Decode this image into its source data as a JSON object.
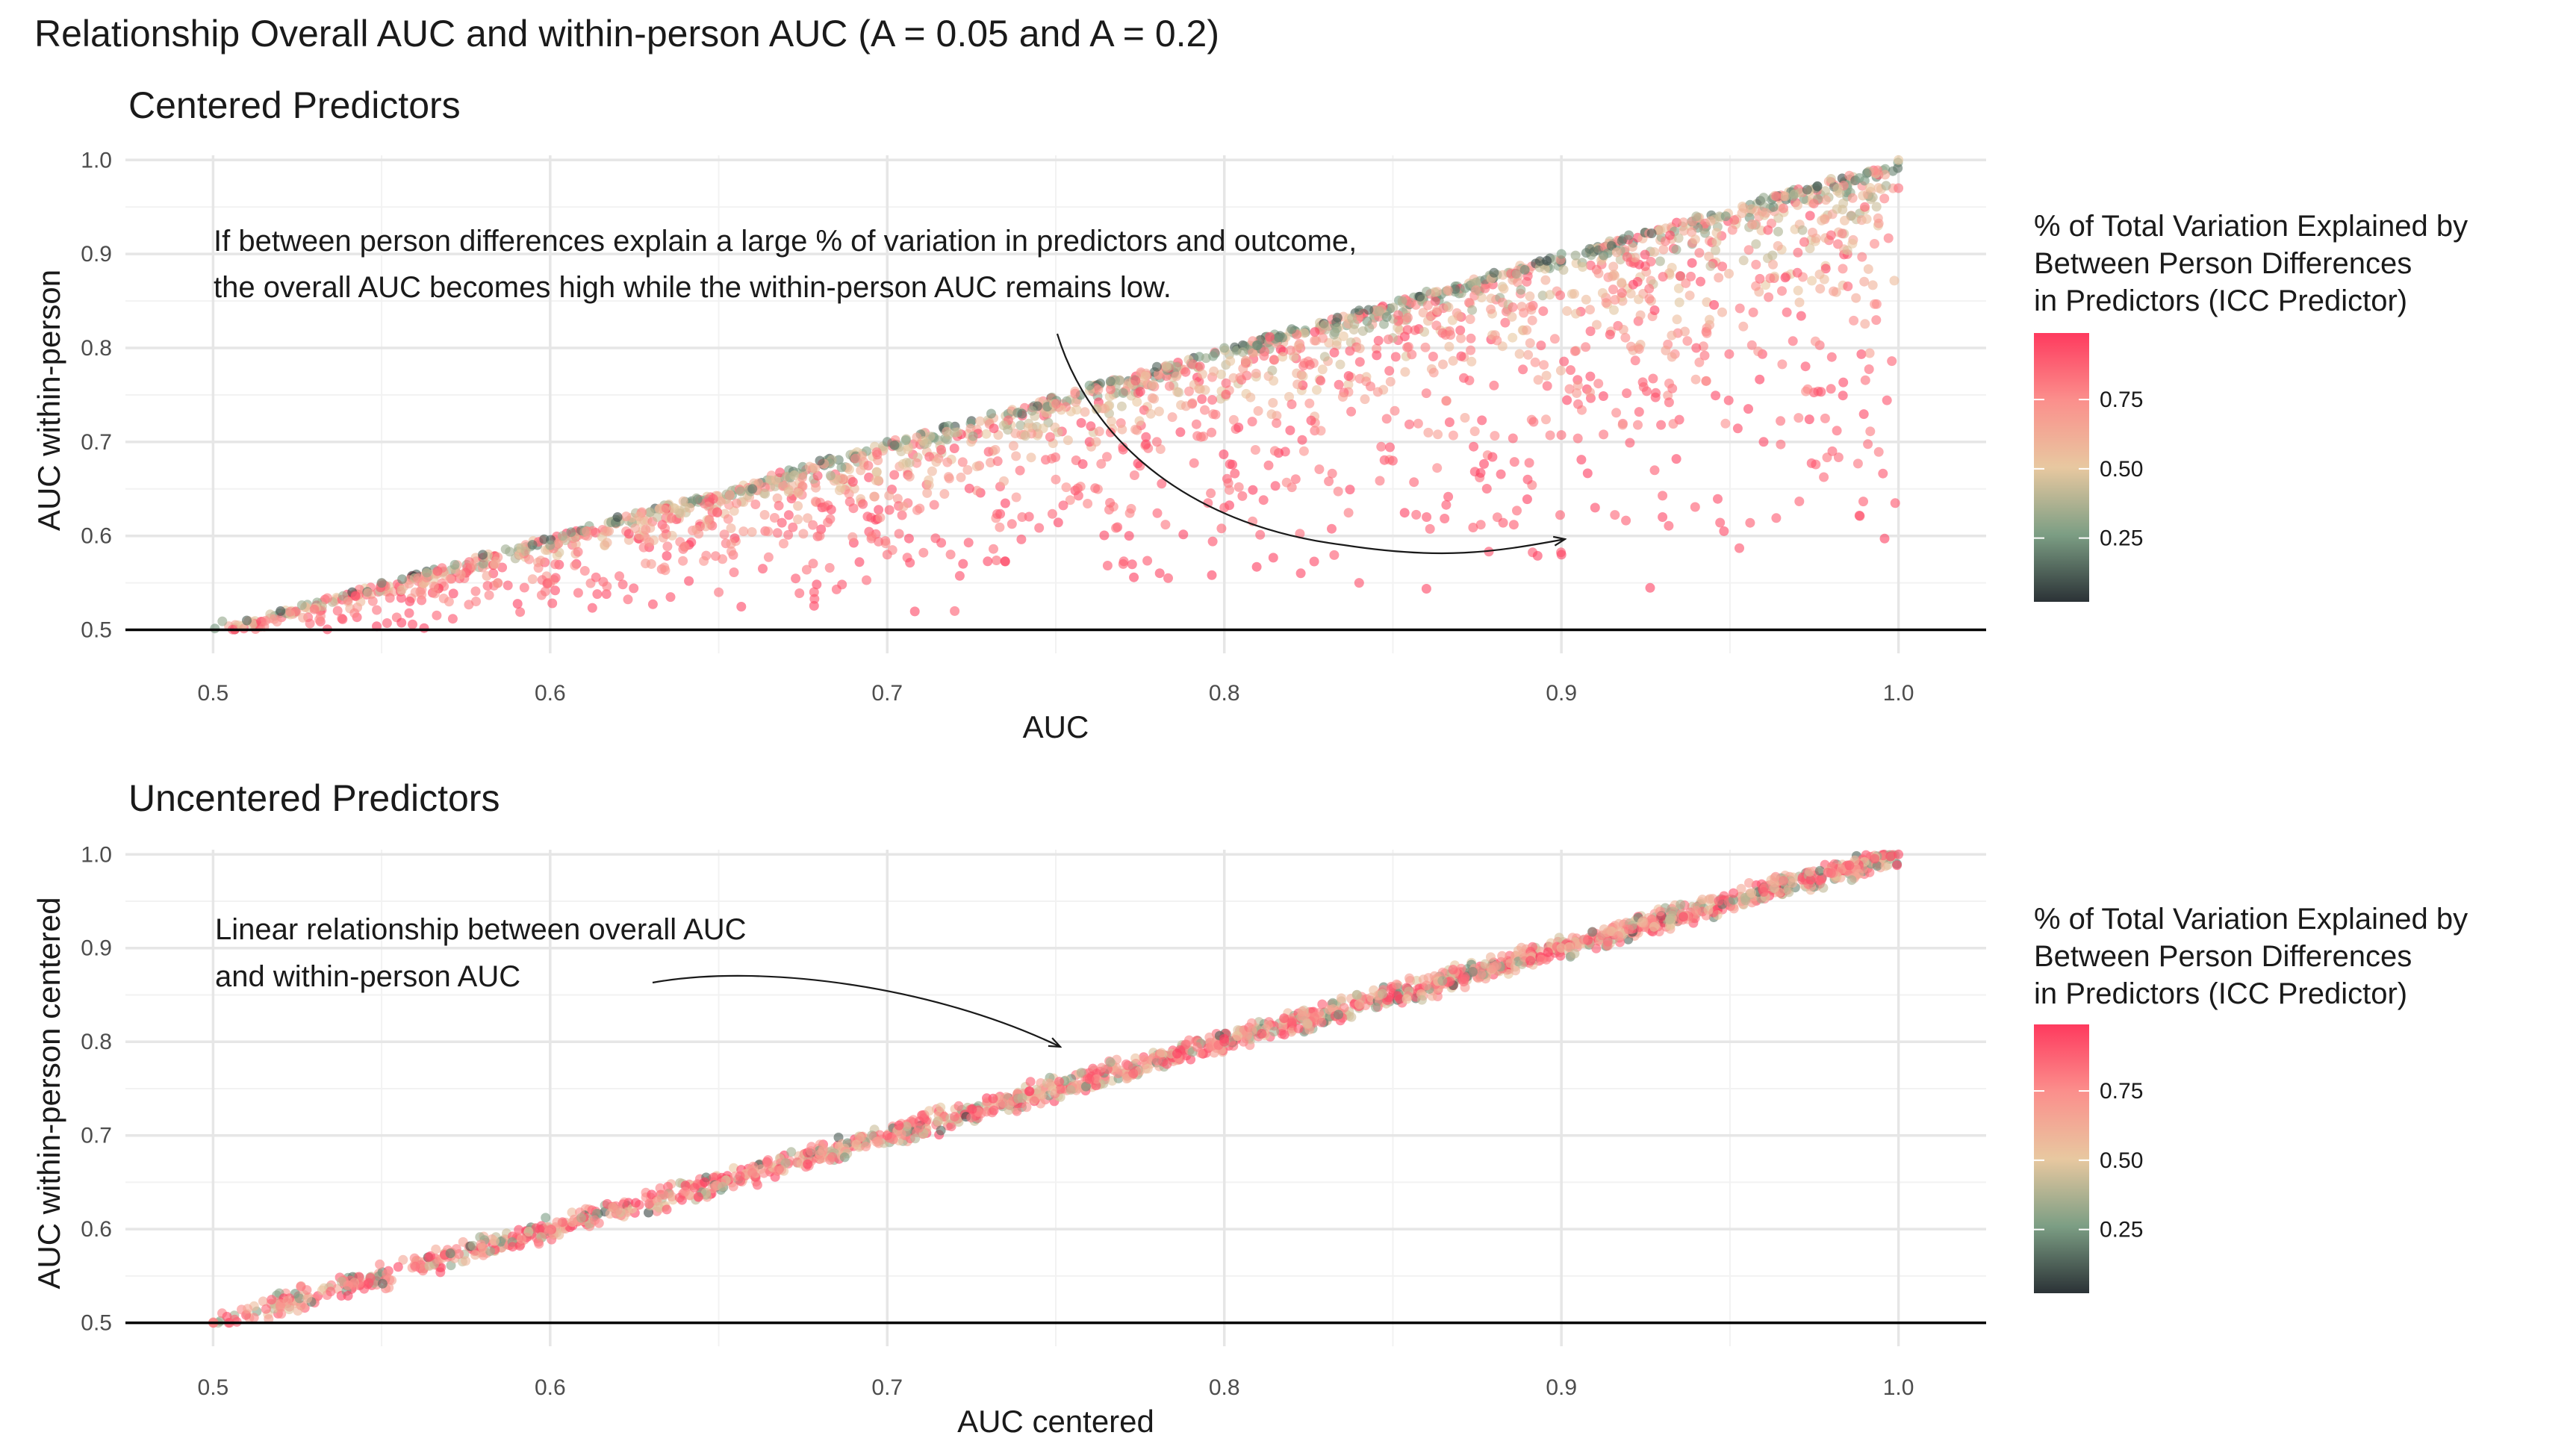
{
  "title": "Relationship Overall AUC and within-person AUC (A = 0.05 and A = 0.2)",
  "colors": {
    "low": "#2b3236",
    "mid_low": "#7c9e84",
    "mid": "#e8c8a0",
    "mid_high": "#fb8f8c",
    "high": "#fe3a5e",
    "grid_major": "#e6e6e6",
    "grid_minor": "#f2f2f2",
    "hline": "#000000"
  },
  "legend": {
    "title_lines": [
      "% of Total Variation Explained by",
      "Between Person Differences",
      "in Predictors (ICC Predictor)"
    ],
    "ticks": [
      "0.25",
      "0.50",
      "0.75"
    ],
    "tick_values": [
      0.25,
      0.5,
      0.75
    ],
    "range": [
      0.02,
      0.99
    ]
  },
  "chart_data": [
    {
      "type": "scatter",
      "title": "Centered Predictors",
      "xlabel": "AUC",
      "ylabel": "AUC within-person",
      "xlim": [
        0.474,
        1.026
      ],
      "ylim": [
        0.475,
        1.005
      ],
      "xticks": [
        "0.5",
        "0.6",
        "0.7",
        "0.8",
        "0.9",
        "1.0"
      ],
      "xtick_values": [
        0.5,
        0.6,
        0.7,
        0.8,
        0.9,
        1.0
      ],
      "yticks": [
        "0.5",
        "0.6",
        "0.7",
        "0.8",
        "0.9",
        "1.0"
      ],
      "ytick_values": [
        0.5,
        0.6,
        0.7,
        0.8,
        0.9,
        1.0
      ],
      "hline": 0.5,
      "grid": true,
      "color_variable": "ICC Predictor",
      "annotation": {
        "lines": [
          "If between person differences explain a large % of variation in predictors and outcome,",
          "the overall AUC becomes high while the within-person AUC remains low."
        ],
        "arrow_from": [
          0.75,
          0.82
        ],
        "arrow_to": [
          0.9,
          0.6
        ]
      },
      "pattern": "points fill a wedge between the diagonal y = x (low ICC, dark/green) and y = 0.5; high-ICC points (red) fall well below the diagonal, down to about y = 0.55-0.65 at x = 0.85-0.93",
      "points": [
        [
          0.51,
          0.51,
          0.1
        ],
        [
          0.52,
          0.52,
          0.05
        ],
        [
          0.54,
          0.53,
          0.6
        ],
        [
          0.55,
          0.55,
          0.2
        ],
        [
          0.56,
          0.54,
          0.7
        ],
        [
          0.58,
          0.58,
          0.1
        ],
        [
          0.6,
          0.59,
          0.3
        ],
        [
          0.62,
          0.62,
          0.05
        ],
        [
          0.64,
          0.63,
          0.45
        ],
        [
          0.66,
          0.65,
          0.15
        ],
        [
          0.68,
          0.68,
          0.1
        ],
        [
          0.7,
          0.7,
          0.2
        ],
        [
          0.72,
          0.71,
          0.4
        ],
        [
          0.74,
          0.73,
          0.15
        ],
        [
          0.76,
          0.76,
          0.25
        ],
        [
          0.78,
          0.78,
          0.1
        ],
        [
          0.8,
          0.8,
          0.3
        ],
        [
          0.82,
          0.82,
          0.2
        ],
        [
          0.84,
          0.84,
          0.15
        ],
        [
          0.86,
          0.86,
          0.3
        ],
        [
          0.88,
          0.88,
          0.1
        ],
        [
          0.9,
          0.9,
          0.25
        ],
        [
          0.92,
          0.92,
          0.2
        ],
        [
          0.94,
          0.94,
          0.35
        ],
        [
          0.96,
          0.96,
          0.3
        ],
        [
          0.98,
          0.98,
          0.45
        ],
        [
          1.0,
          1.0,
          0.5
        ],
        [
          0.57,
          0.53,
          0.75
        ],
        [
          0.6,
          0.55,
          0.8
        ],
        [
          0.63,
          0.57,
          0.7
        ],
        [
          0.65,
          0.54,
          0.85
        ],
        [
          0.68,
          0.6,
          0.8
        ],
        [
          0.7,
          0.58,
          0.85
        ],
        [
          0.72,
          0.52,
          0.9
        ],
        [
          0.74,
          0.62,
          0.85
        ],
        [
          0.75,
          0.66,
          0.8
        ],
        [
          0.77,
          0.57,
          0.9
        ],
        [
          0.78,
          0.7,
          0.85
        ],
        [
          0.8,
          0.63,
          0.9
        ],
        [
          0.82,
          0.74,
          0.88
        ],
        [
          0.84,
          0.55,
          0.95
        ],
        [
          0.85,
          0.68,
          0.92
        ],
        [
          0.86,
          0.62,
          0.95
        ],
        [
          0.88,
          0.76,
          0.9
        ],
        [
          0.89,
          0.66,
          0.95
        ],
        [
          0.9,
          0.58,
          0.97
        ],
        [
          0.91,
          0.63,
          0.97
        ],
        [
          0.93,
          0.62,
          0.97
        ],
        [
          0.94,
          0.8,
          0.93
        ],
        [
          0.96,
          0.7,
          0.97
        ],
        [
          0.97,
          0.88,
          0.92
        ],
        [
          0.98,
          0.92,
          0.9
        ],
        [
          0.99,
          0.95,
          0.9
        ],
        [
          1.0,
          0.97,
          0.85
        ]
      ]
    },
    {
      "type": "scatter",
      "title": "Uncentered Predictors",
      "xlabel": "AUC centered",
      "ylabel": "AUC within-person centered",
      "xlim": [
        0.474,
        1.026
      ],
      "ylim": [
        0.475,
        1.005
      ],
      "xticks": [
        "0.5",
        "0.6",
        "0.7",
        "0.8",
        "0.9",
        "1.0"
      ],
      "xtick_values": [
        0.5,
        0.6,
        0.7,
        0.8,
        0.9,
        1.0
      ],
      "yticks": [
        "0.5",
        "0.6",
        "0.7",
        "0.8",
        "0.9",
        "1.0"
      ],
      "ytick_values": [
        0.5,
        0.6,
        0.7,
        0.8,
        0.9,
        1.0
      ],
      "hline": 0.5,
      "grid": true,
      "color_variable": "ICC Predictor",
      "annotation": {
        "lines": [
          "Linear relationship between overall AUC",
          "and within-person AUC"
        ],
        "arrow_from": [
          0.63,
          0.865
        ],
        "arrow_to": [
          0.75,
          0.8
        ]
      },
      "pattern": "points lie along the diagonal y = x with small scatter (about ±0.015)",
      "points": [
        [
          0.5,
          0.5,
          0.8
        ],
        [
          0.52,
          0.52,
          0.7
        ],
        [
          0.54,
          0.54,
          0.75
        ],
        [
          0.56,
          0.56,
          0.85
        ],
        [
          0.58,
          0.58,
          0.6
        ],
        [
          0.6,
          0.6,
          0.8
        ],
        [
          0.62,
          0.62,
          0.7
        ],
        [
          0.64,
          0.64,
          0.75
        ],
        [
          0.66,
          0.66,
          0.8
        ],
        [
          0.68,
          0.68,
          0.65
        ],
        [
          0.7,
          0.7,
          0.9
        ],
        [
          0.72,
          0.72,
          0.85
        ],
        [
          0.74,
          0.74,
          0.4
        ],
        [
          0.76,
          0.76,
          0.9
        ],
        [
          0.78,
          0.78,
          0.8
        ],
        [
          0.8,
          0.8,
          0.95
        ],
        [
          0.82,
          0.82,
          0.9
        ],
        [
          0.84,
          0.84,
          0.6
        ],
        [
          0.86,
          0.86,
          0.75
        ],
        [
          0.88,
          0.88,
          0.7
        ],
        [
          0.9,
          0.9,
          0.55
        ],
        [
          0.92,
          0.92,
          0.8
        ],
        [
          0.94,
          0.94,
          0.7
        ],
        [
          0.96,
          0.96,
          0.9
        ],
        [
          0.98,
          0.98,
          0.85
        ],
        [
          1.0,
          1.0,
          0.95
        ]
      ]
    }
  ]
}
